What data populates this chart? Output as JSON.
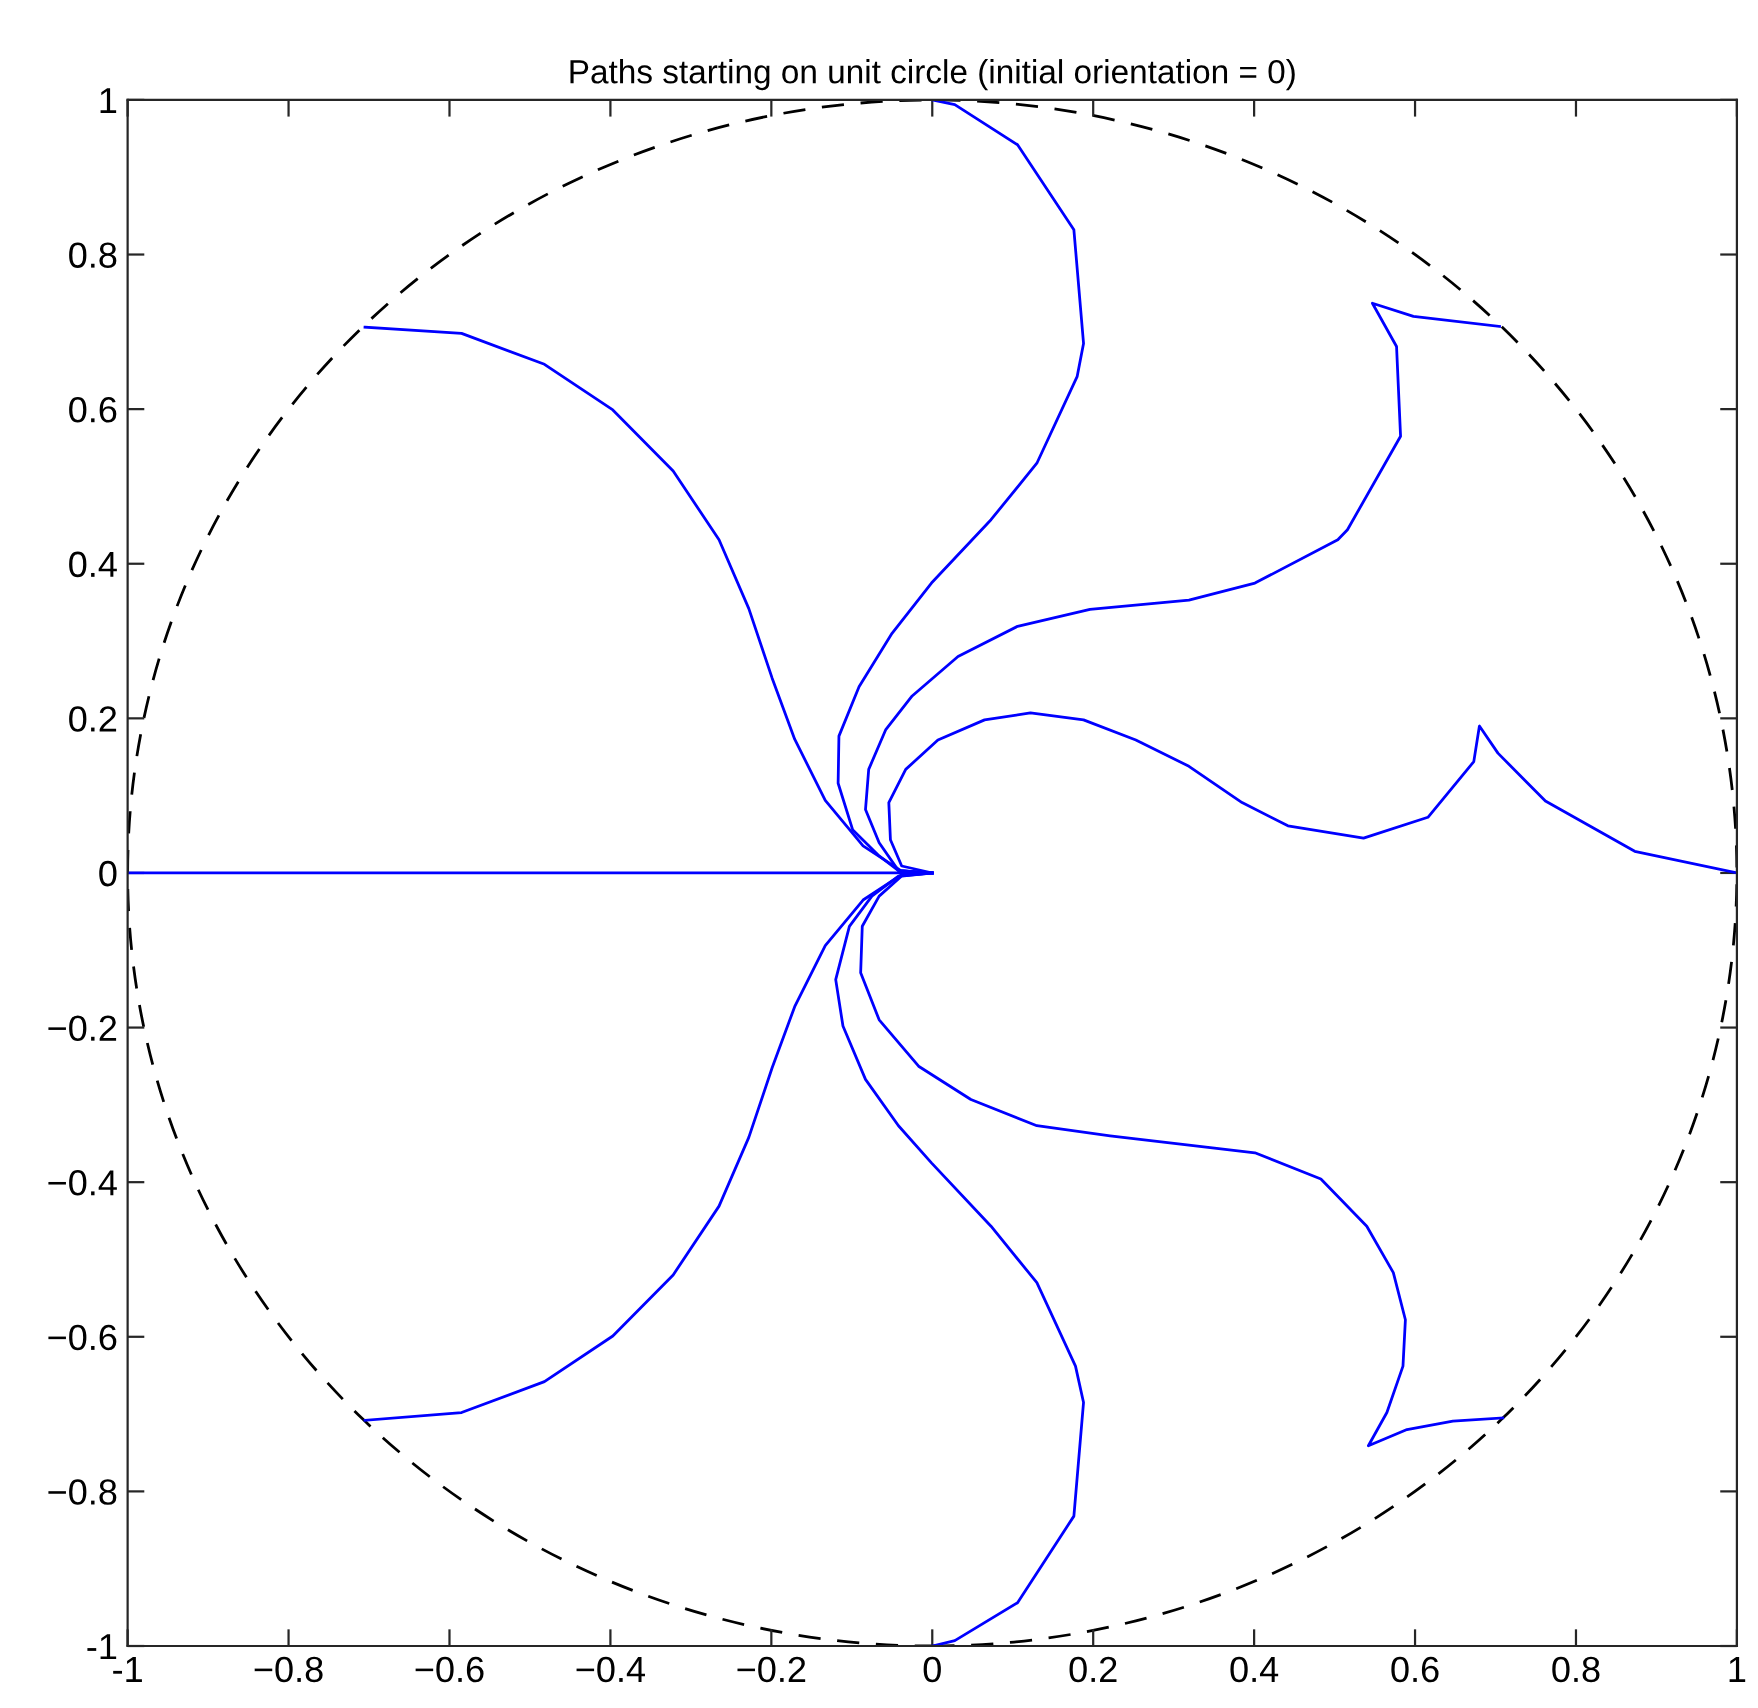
{
  "chart_data": {
    "type": "line",
    "title": "Paths starting on unit circle (initial orientation = 0)",
    "xlim": [
      -1,
      1
    ],
    "ylim": [
      -1,
      1
    ],
    "xticks": [
      -1,
      {
        "value": -0.8,
        "label": "−0.8"
      },
      {
        "value": -0.6,
        "label": "−0.6"
      },
      {
        "value": -0.4,
        "label": "−0.4"
      },
      {
        "value": -0.2,
        "label": "−0.2"
      },
      0,
      0.2,
      0.4,
      0.6,
      0.8,
      1
    ],
    "yticks": [
      -1,
      {
        "value": -0.8,
        "label": "−0.8"
      },
      {
        "value": -0.6,
        "label": "−0.6"
      },
      {
        "value": -0.4,
        "label": "−0.4"
      },
      {
        "value": -0.2,
        "label": "−0.2"
      },
      0,
      0.2,
      0.4,
      0.6,
      0.8,
      1
    ],
    "grid": false,
    "legend": false,
    "marker": "none",
    "series": [
      {
        "color": "#0000ff",
        "line_style": "solid",
        "x": [
          1.0,
          0.873,
          0.762,
          0.703,
          0.68,
          0.673,
          0.616,
          0.536,
          0.442,
          0.385,
          0.319,
          0.253,
          0.188,
          0.122,
          0.065,
          0.007,
          -0.033,
          -0.054,
          -0.052,
          -0.038,
          0
        ],
        "values": [
          0,
          0.028,
          0.093,
          0.155,
          0.19,
          0.144,
          0.072,
          0.045,
          0.061,
          0.091,
          0.138,
          0.172,
          0.198,
          0.207,
          0.198,
          0.172,
          0.134,
          0.091,
          0.043,
          0.009,
          0
        ]
      },
      {
        "color": "#0000ff",
        "line_style": "solid",
        "x": [
          0.705,
          0.598,
          0.547,
          0.577,
          0.582,
          0.516,
          0.504,
          0.401,
          0.319,
          0.196,
          0.106,
          0.032,
          -0.025,
          -0.058,
          -0.079,
          -0.083,
          -0.066,
          -0.042,
          0
        ],
        "values": [
          0.707,
          0.72,
          0.737,
          0.681,
          0.565,
          0.444,
          0.431,
          0.375,
          0.353,
          0.341,
          0.319,
          0.28,
          0.229,
          0.185,
          0.134,
          0.082,
          0.039,
          0.003,
          0
        ]
      },
      {
        "color": "#0000ff",
        "line_style": "solid",
        "x": [
          0,
          0.028,
          0.106,
          0.176,
          0.188,
          0.18,
          0.13,
          0.073,
          -0.001,
          -0.05,
          -0.091,
          -0.116,
          -0.117,
          -0.099,
          -0.066,
          -0.042,
          0
        ],
        "values": [
          1.0,
          0.994,
          0.942,
          0.832,
          0.685,
          0.642,
          0.53,
          0.457,
          0.375,
          0.31,
          0.241,
          0.177,
          0.116,
          0.056,
          0.022,
          0.003,
          0
        ]
      },
      {
        "color": "#0000ff",
        "line_style": "solid",
        "x": [
          -0.705,
          -0.585,
          -0.482,
          -0.397,
          -0.322,
          -0.265,
          -0.228,
          -0.199,
          -0.171,
          -0.133,
          -0.086,
          -0.039,
          0
        ],
        "values": [
          0.706,
          0.698,
          0.658,
          0.599,
          0.52,
          0.431,
          0.342,
          0.252,
          0.173,
          0.094,
          0.035,
          0.003,
          0
        ]
      },
      {
        "color": "#0000ff",
        "line_style": "solid",
        "x": [
          -1,
          0
        ],
        "values": [
          0,
          0
        ]
      },
      {
        "color": "#0000ff",
        "line_style": "solid",
        "x": [
          -0.705,
          -0.585,
          -0.482,
          -0.397,
          -0.322,
          -0.265,
          -0.228,
          -0.199,
          -0.171,
          -0.133,
          -0.086,
          -0.039,
          0
        ],
        "values": [
          -0.708,
          -0.698,
          -0.658,
          -0.599,
          -0.52,
          -0.431,
          -0.342,
          -0.252,
          -0.173,
          -0.094,
          -0.035,
          -0.003,
          0
        ]
      },
      {
        "color": "#0000ff",
        "line_style": "solid",
        "x": [
          0,
          0.028,
          0.106,
          0.176,
          0.188,
          0.178,
          0.13,
          0.073,
          -0.001,
          -0.042,
          -0.083,
          -0.111,
          -0.12,
          -0.103,
          -0.075,
          -0.042,
          0
        ],
        "values": [
          -1.0,
          -0.993,
          -0.944,
          -0.832,
          -0.685,
          -0.638,
          -0.53,
          -0.457,
          -0.375,
          -0.327,
          -0.267,
          -0.198,
          -0.138,
          -0.069,
          -0.03,
          -0.004,
          0
        ]
      },
      {
        "color": "#0000ff",
        "line_style": "solid",
        "x": [
          0.709,
          0.647,
          0.59,
          0.542,
          0.565,
          0.585,
          0.588,
          0.573,
          0.54,
          0.483,
          0.401,
          0.319,
          0.221,
          0.13,
          0.048,
          -0.017,
          -0.066,
          -0.089,
          -0.087,
          -0.066,
          -0.038,
          0
        ],
        "values": [
          -0.705,
          -0.709,
          -0.72,
          -0.741,
          -0.698,
          -0.638,
          -0.578,
          -0.517,
          -0.457,
          -0.396,
          -0.362,
          -0.352,
          -0.34,
          -0.327,
          -0.293,
          -0.25,
          -0.19,
          -0.129,
          -0.069,
          -0.03,
          -0.004,
          0
        ]
      }
    ]
  }
}
